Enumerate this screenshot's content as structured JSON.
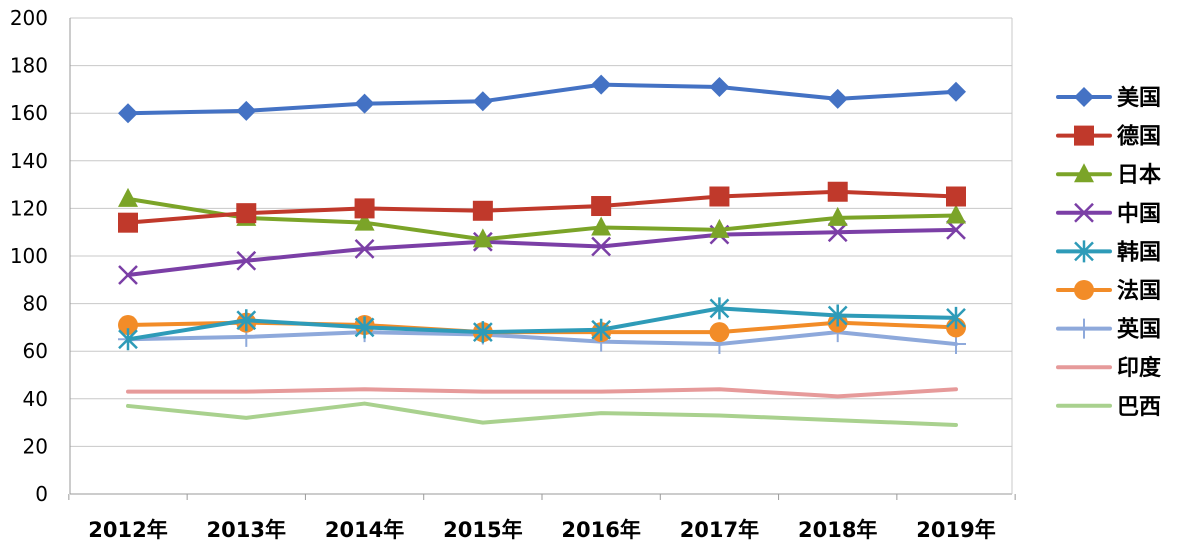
{
  "chart_data": {
    "type": "line",
    "title": "",
    "xlabel": "",
    "ylabel": "",
    "ylim": [
      0,
      200
    ],
    "yticks": [
      0,
      20,
      40,
      60,
      80,
      100,
      120,
      140,
      160,
      180,
      200
    ],
    "grid": true,
    "legend_position": "right",
    "categories": [
      "2012年",
      "2013年",
      "2014年",
      "2015年",
      "2016年",
      "2017年",
      "2018年",
      "2019年"
    ],
    "series": [
      {
        "name": "美国",
        "color": "#4472C4",
        "marker": "diamond",
        "values": [
          160,
          161,
          164,
          165,
          172,
          171,
          166,
          169
        ]
      },
      {
        "name": "德国",
        "color": "#C0392B",
        "marker": "square",
        "values": [
          114,
          118,
          120,
          119,
          121,
          125,
          127,
          125
        ]
      },
      {
        "name": "日本",
        "color": "#7BA428",
        "marker": "triangle",
        "values": [
          124,
          116,
          114,
          107,
          112,
          111,
          116,
          117
        ]
      },
      {
        "name": "中国",
        "color": "#7B3FA6",
        "marker": "x",
        "values": [
          92,
          98,
          103,
          106,
          104,
          109,
          110,
          111
        ]
      },
      {
        "name": "韩国",
        "color": "#2E9BB8",
        "marker": "asterisk",
        "values": [
          65,
          73,
          70,
          68,
          69,
          78,
          75,
          74
        ]
      },
      {
        "name": "法国",
        "color": "#F28C28",
        "marker": "circle",
        "values": [
          71,
          72,
          71,
          68,
          68,
          68,
          72,
          70
        ]
      },
      {
        "name": "英国",
        "color": "#8EA9DB",
        "marker": "plus",
        "values": [
          65,
          66,
          68,
          67,
          64,
          63,
          68,
          63
        ]
      },
      {
        "name": "印度",
        "color": "#E69A9A",
        "marker": "none",
        "values": [
          43,
          43,
          44,
          43,
          43,
          44,
          41,
          44
        ]
      },
      {
        "name": "巴西",
        "color": "#A9D18E",
        "marker": "none",
        "values": [
          37,
          32,
          38,
          30,
          34,
          33,
          31,
          29
        ]
      }
    ]
  }
}
